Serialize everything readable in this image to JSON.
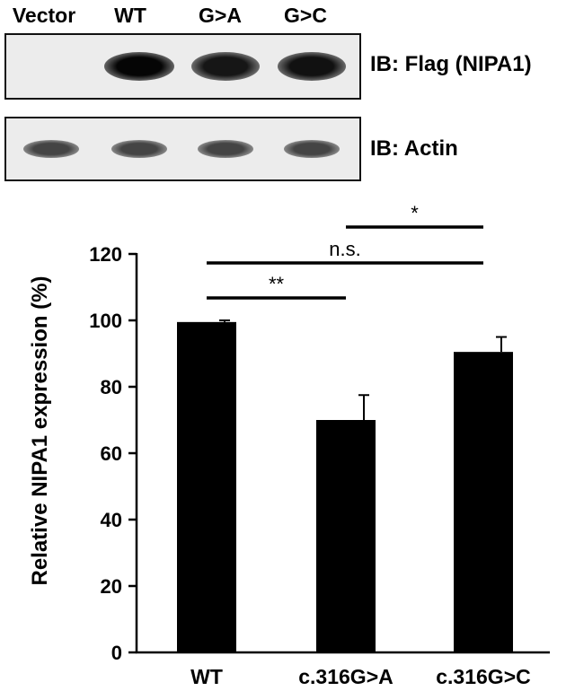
{
  "blot": {
    "lanes": [
      "Vector",
      "WT",
      "G>A",
      "G>C"
    ],
    "panels": [
      {
        "label": "IB: Flag (NIPA1)",
        "intensities": [
          0,
          1.0,
          0.85,
          0.9
        ]
      },
      {
        "label": "IB: Actin",
        "intensities": [
          0.45,
          0.45,
          0.45,
          0.45
        ]
      }
    ]
  },
  "chart_data": {
    "type": "bar",
    "categories": [
      "WT",
      "c.316G>A",
      "c.316G>C"
    ],
    "values": [
      99.5,
      70,
      90.5
    ],
    "errors": [
      0.5,
      7.5,
      4.5
    ],
    "ylabel": "Relative NIPA1 expression (%)",
    "ylim": [
      0,
      120
    ],
    "yticks": [
      "0",
      "20",
      "40",
      "60",
      "80",
      "100",
      "120"
    ],
    "grid": false,
    "annotations": [
      {
        "from": "WT",
        "to": "c.316G>A",
        "text": "**"
      },
      {
        "from": "WT",
        "to": "c.316G>C",
        "text": "n.s."
      },
      {
        "from": "c.316G>A",
        "to": "c.316G>C",
        "text": "*"
      }
    ],
    "colors": {
      "bar": "#000000"
    }
  }
}
